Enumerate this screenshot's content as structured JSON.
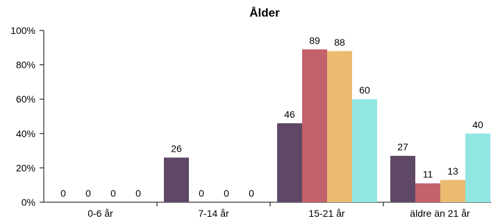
{
  "chart_data": {
    "type": "bar",
    "title": "Ålder",
    "xlabel": "",
    "ylabel": "",
    "categories": [
      "0-6 år",
      "7-14 år",
      "15-21 år",
      "äldre än 21 år"
    ],
    "series": [
      {
        "values": [
          0,
          26,
          46,
          27
        ],
        "color": "#5f4866"
      },
      {
        "values": [
          0,
          0,
          89,
          11
        ],
        "color": "#c3626c"
      },
      {
        "values": [
          0,
          0,
          88,
          13
        ],
        "color": "#ebbb72"
      },
      {
        "values": [
          0,
          0,
          60,
          40
        ],
        "color": "#91e6e2"
      }
    ],
    "ylim": [
      0,
      100
    ],
    "yticks": [
      "0%",
      "20%",
      "40%",
      "60%",
      "80%",
      "100%"
    ],
    "grid": false,
    "legend": "none"
  }
}
